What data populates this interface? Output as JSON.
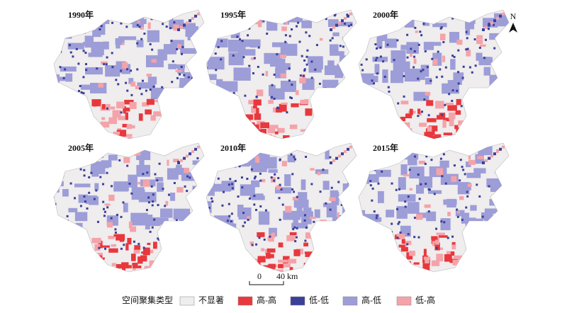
{
  "panels": [
    {
      "label": "1990年"
    },
    {
      "label": "1995年"
    },
    {
      "label": "2000年"
    },
    {
      "label": "2005年"
    },
    {
      "label": "2010年"
    },
    {
      "label": "2015年"
    }
  ],
  "north": "N",
  "scale": {
    "start": "0",
    "end": "40 km"
  },
  "legend": {
    "title": "空间聚集类型",
    "items": [
      {
        "label": "不显著",
        "color": "#efeded"
      },
      {
        "label": "高-高",
        "color": "#e8383d"
      },
      {
        "label": "低-低",
        "color": "#3a3f9a"
      },
      {
        "label": "高-低",
        "color": "#9d9dd8"
      },
      {
        "label": "低-高",
        "color": "#f4a3a9"
      }
    ]
  }
}
